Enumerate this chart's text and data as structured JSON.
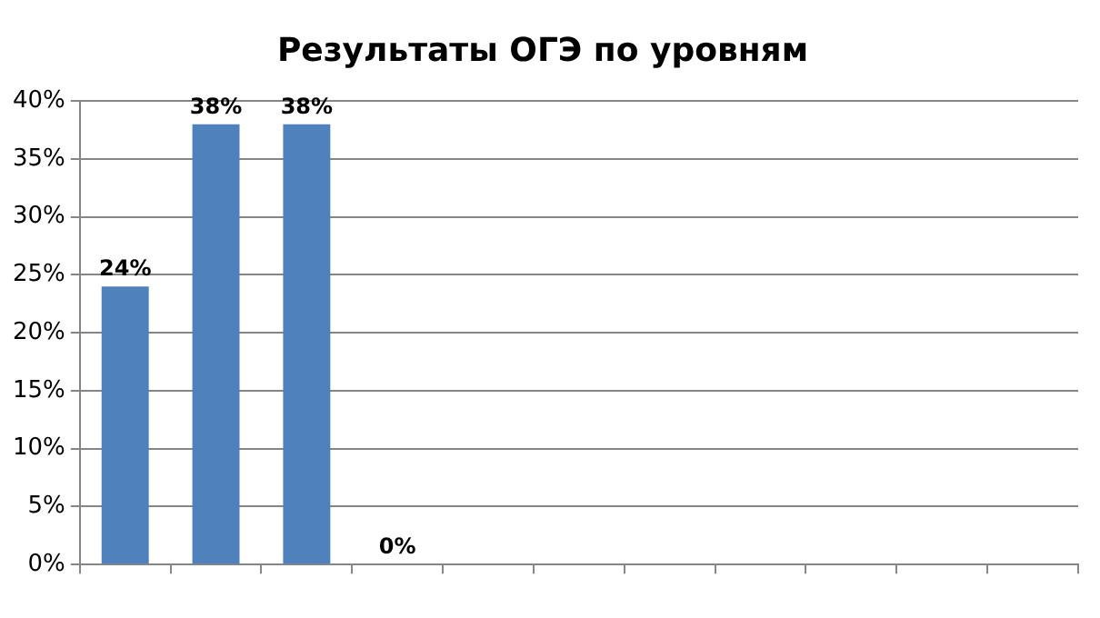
{
  "chart_data": {
    "type": "bar",
    "title": "Результаты ОГЭ по уровням",
    "categories": [
      null,
      null,
      null,
      null,
      null,
      null,
      null,
      null,
      null,
      null,
      null
    ],
    "values": [
      24,
      38,
      38,
      0,
      null,
      null,
      null,
      null,
      null,
      null,
      null
    ],
    "value_labels": [
      "24%",
      "38%",
      "38%",
      "0%",
      null,
      null,
      null,
      null,
      null,
      null,
      null
    ],
    "color": "#4f81bd",
    "ylim": [
      0,
      40
    ],
    "yticks": [
      {
        "value": 0,
        "label": "0%"
      },
      {
        "value": 5,
        "label": "5%"
      },
      {
        "value": 10,
        "label": "10%"
      },
      {
        "value": 15,
        "label": "15%"
      },
      {
        "value": 20,
        "label": "20%"
      },
      {
        "value": 25,
        "label": "25%"
      },
      {
        "value": 30,
        "label": "30%"
      },
      {
        "value": 35,
        "label": "35%"
      },
      {
        "value": 40,
        "label": "40%"
      }
    ],
    "grid": "y",
    "legend": false
  }
}
